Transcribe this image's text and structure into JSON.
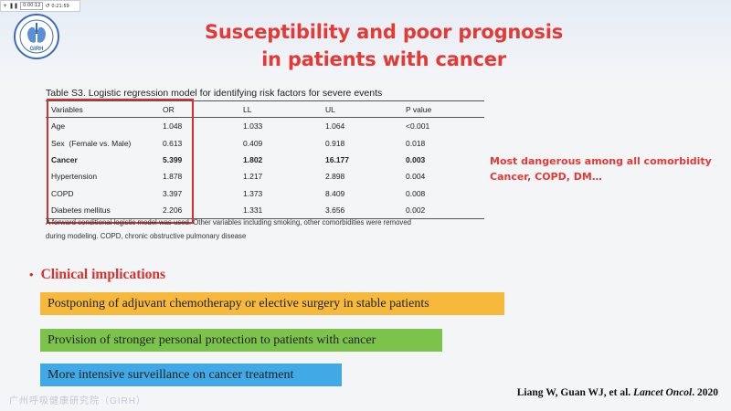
{
  "player": {
    "time": "0:00:12",
    "duration": "0:21:59",
    "add_icon": "+",
    "pause_icon": "❚❚",
    "reload_icon": "↺"
  },
  "logo": {
    "text": "GIRH",
    "icon": "institute-logo-icon"
  },
  "slide": {
    "title_line1": "Susceptibility and poor prognosis",
    "title_line2": "in patients with cancer"
  },
  "table": {
    "caption": "Table S3. Logistic regression model for identifying risk factors for severe events",
    "columns": [
      "Variables",
      "OR",
      "LL",
      "UL",
      "P value"
    ],
    "rows": [
      [
        "Age",
        "1.048",
        "1.033",
        "1.064",
        "<0.001"
      ],
      [
        "Sex  (Female vs. Male)",
        "0.613",
        "0.409",
        "0.918",
        "0.018"
      ],
      [
        "Cancer",
        "5.399",
        "1.802",
        "16.177",
        "0.003"
      ],
      [
        "Hypertension",
        "1.878",
        "1.217",
        "2.898",
        "0.004"
      ],
      [
        "COPD",
        "3.397",
        "1.373",
        "8.409",
        "0.008"
      ],
      [
        "Diabetes mellitus",
        "2.206",
        "1.331",
        "3.656",
        "0.002"
      ]
    ],
    "note_line1": "A forward conditional logistic model was used. Other variables including smoking, other comorbidities were removed",
    "note_line2": "during modeling. COPD, chronic obstructive pulmonary disease"
  },
  "side_note": {
    "line1": "Most dangerous among all comorbidity",
    "line2": "Cancer, COPD, DM…"
  },
  "implications": {
    "bullet": "•",
    "heading": "Clinical implications",
    "items": [
      "Postponing of adjuvant chemotherapy or elective surgery in stable patients",
      "Provision of stronger personal protection to patients with cancer",
      "More intensive surveillance on cancer treatment"
    ]
  },
  "watermark": "广州呼吸健康研究院（GIRH）",
  "citation": {
    "authors": "Liang W, Guan WJ, et al.",
    "journal": "Lancet Oncol",
    "year": ". 2020"
  },
  "colors": {
    "title": "#e53935",
    "box": "#d9302c",
    "pill1": "#f6b93b",
    "pill2": "#7cc34b",
    "pill3": "#41a9e6"
  }
}
